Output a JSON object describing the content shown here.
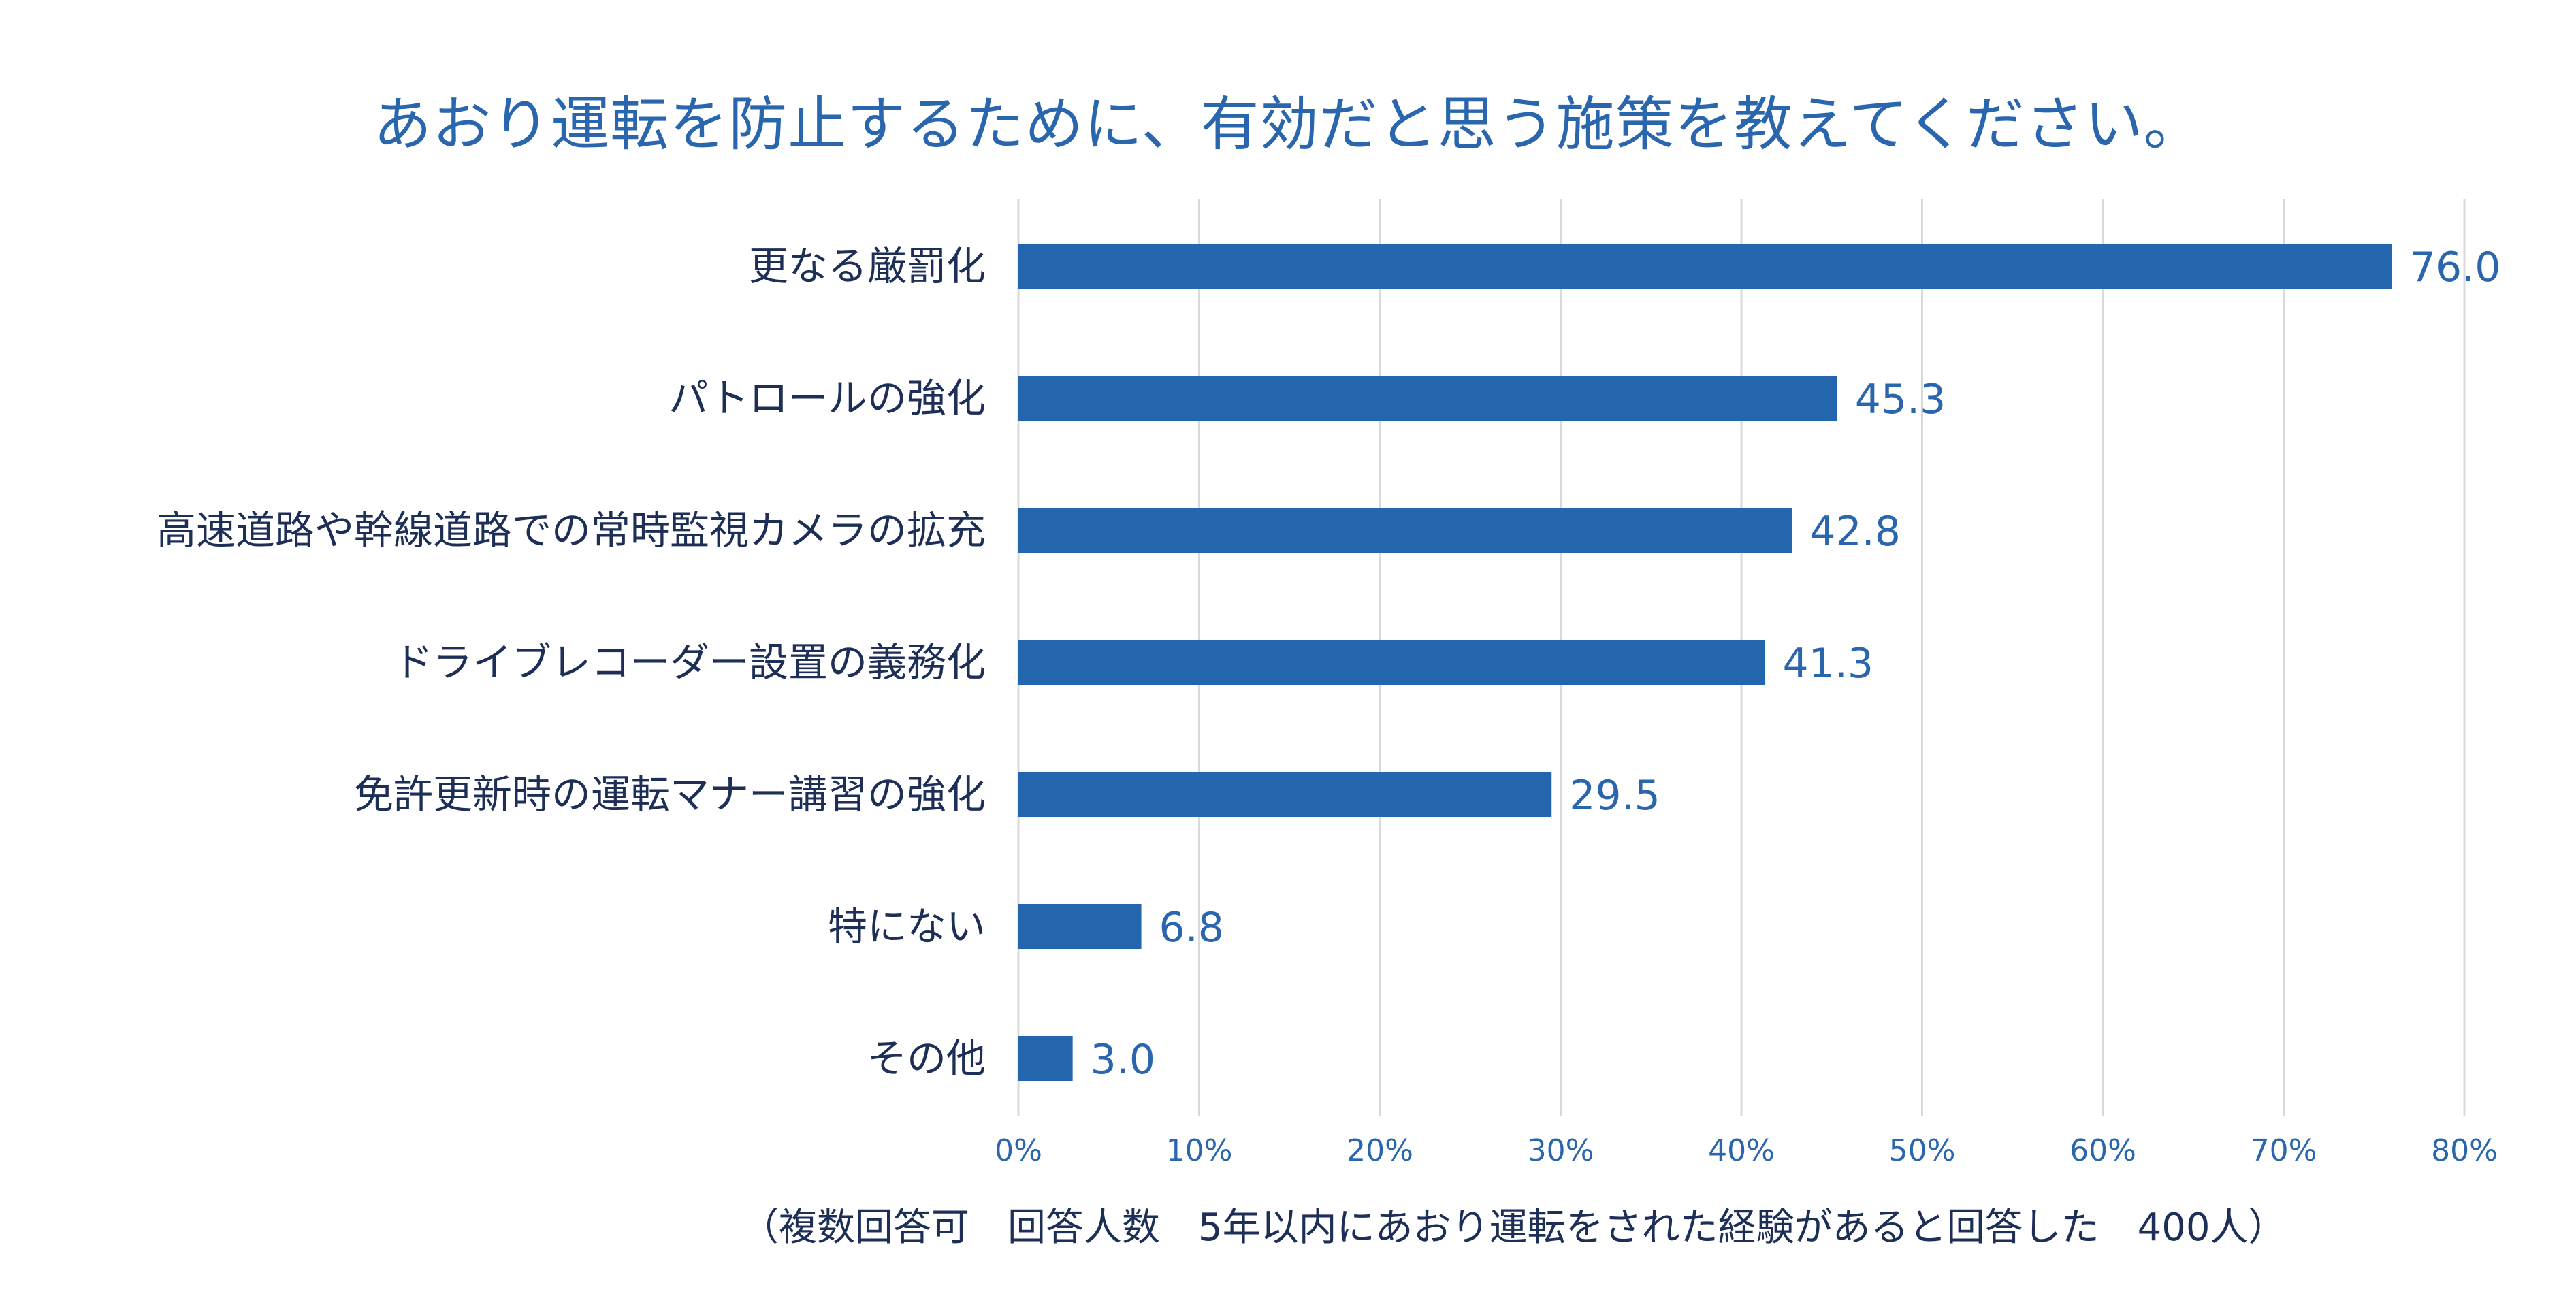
{
  "chart_data": {
    "type": "bar",
    "orientation": "horizontal",
    "title": "あおり運転を防止するために、有効だと思う施策を教えてください。",
    "categories": [
      "更なる厳罰化",
      "パトロールの強化",
      "高速道路や幹線道路での常時監視カメラの拡充",
      "ドライブレコーダー設置の義務化",
      "免許更新時の運転マナー講習の強化",
      "特にない",
      "その他"
    ],
    "values": [
      76.0,
      45.3,
      42.8,
      41.3,
      29.5,
      6.8,
      3.0
    ],
    "value_labels": [
      "76.0",
      "45.3",
      "42.8",
      "41.3",
      "29.5",
      "6.8",
      "3.0"
    ],
    "xlim": [
      0,
      80
    ],
    "x_ticks": [
      "0%",
      "10%",
      "20%",
      "30%",
      "40%",
      "50%",
      "60%",
      "70%",
      "80%"
    ],
    "grid": "vertical",
    "legend": "none",
    "note": "（複数回答可　回答人数　5年以内にあおり運転をされた経験があると回答した　400人）",
    "colors": {
      "bar": "#2466ae",
      "title": "#2a66ad",
      "category_label": "#1d2f57",
      "value_label": "#2a66ad",
      "tick_label": "#2a66ad",
      "grid": "#d9d9d9"
    }
  }
}
